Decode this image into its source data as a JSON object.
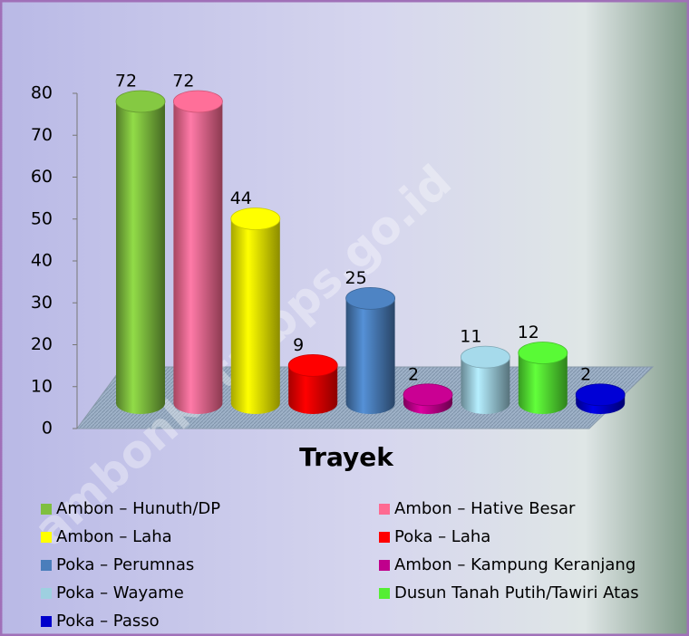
{
  "chart_data": {
    "type": "bar",
    "categories": [
      "Ambon – Hunuth/DP",
      "Ambon – Hative Besar",
      "Ambon – Laha",
      "Poka – Laha",
      "Poka – Perumnas",
      "Ambon – Kampung Keranjang",
      "Poka – Wayame",
      "Dusun Tanah Putih/Tawiri Atas",
      "Poka – Passo"
    ],
    "values": [
      72,
      72,
      44,
      9,
      25,
      2,
      11,
      12,
      2
    ],
    "colors": [
      "#7fbf3f",
      "#ff6a92",
      "#ffff00",
      "#ff0000",
      "#4a7ebb",
      "#c0008c",
      "#9ed0e0",
      "#55ee33",
      "#0000cc"
    ],
    "xlabel": "Trayek",
    "ylim": [
      0,
      80
    ],
    "yticks": [
      0,
      10,
      20,
      30,
      40,
      50,
      60,
      70,
      80
    ],
    "watermark": "ambonkota.bps.go.id"
  }
}
